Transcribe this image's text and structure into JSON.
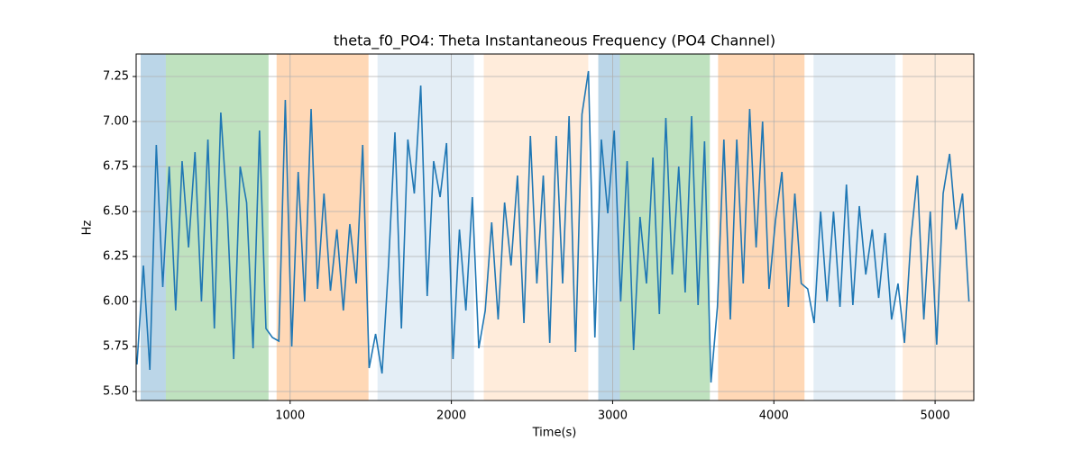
{
  "chart_data": {
    "type": "line",
    "title": "theta_f0_PO4: Theta Instantaneous Frequency (PO4 Channel)",
    "xlabel": "Time(s)",
    "ylabel": "Hz",
    "color": "#1f77b4",
    "grid": true,
    "xlim": [
      45,
      5240
    ],
    "ylim": [
      5.45,
      7.375
    ],
    "xticks": [
      1000,
      2000,
      3000,
      4000,
      5000
    ],
    "yticks": [
      {
        "value": 5.5,
        "label": "5.50"
      },
      {
        "value": 5.75,
        "label": "5.75"
      },
      {
        "value": 6.0,
        "label": "6.00"
      },
      {
        "value": 6.25,
        "label": "6.25"
      },
      {
        "value": 6.5,
        "label": "6.50"
      },
      {
        "value": 6.75,
        "label": "6.75"
      },
      {
        "value": 7.0,
        "label": "7.00"
      },
      {
        "value": 7.25,
        "label": "7.25"
      }
    ],
    "shaded_regions": [
      {
        "start": 73,
        "end": 229,
        "color": "#1f77b4",
        "opacity": 0.3
      },
      {
        "start": 229,
        "end": 866,
        "color": "#2ca02c",
        "opacity": 0.3
      },
      {
        "start": 916,
        "end": 1486,
        "color": "#ff7f0e",
        "opacity": 0.3
      },
      {
        "start": 1542,
        "end": 2140,
        "color": "#1f77b4",
        "opacity": 0.12
      },
      {
        "start": 2201,
        "end": 2849,
        "color": "#ff7f0e",
        "opacity": 0.15
      },
      {
        "start": 2911,
        "end": 3045,
        "color": "#1f77b4",
        "opacity": 0.3
      },
      {
        "start": 3045,
        "end": 3603,
        "color": "#2ca02c",
        "opacity": 0.3
      },
      {
        "start": 3654,
        "end": 4190,
        "color": "#ff7f0e",
        "opacity": 0.3
      },
      {
        "start": 4246,
        "end": 4754,
        "color": "#1f77b4",
        "opacity": 0.12
      },
      {
        "start": 4799,
        "end": 5240,
        "color": "#ff7f0e",
        "opacity": 0.15
      }
    ],
    "x": [
      50,
      90,
      130,
      170,
      210,
      250,
      290,
      330,
      370,
      410,
      450,
      490,
      530,
      570,
      610,
      650,
      690,
      730,
      770,
      810,
      850,
      890,
      930,
      970,
      1010,
      1050,
      1090,
      1130,
      1170,
      1210,
      1250,
      1290,
      1330,
      1370,
      1410,
      1450,
      1490,
      1530,
      1570,
      1610,
      1650,
      1690,
      1730,
      1770,
      1810,
      1850,
      1890,
      1930,
      1970,
      2010,
      2050,
      2090,
      2130,
      2170,
      2210,
      2250,
      2290,
      2330,
      2370,
      2410,
      2450,
      2490,
      2530,
      2570,
      2610,
      2650,
      2690,
      2730,
      2770,
      2810,
      2850,
      2890,
      2930,
      2970,
      3010,
      3050,
      3090,
      3130,
      3170,
      3210,
      3250,
      3290,
      3330,
      3370,
      3410,
      3450,
      3490,
      3530,
      3570,
      3610,
      3650,
      3690,
      3730,
      3770,
      3810,
      3850,
      3890,
      3930,
      3970,
      4010,
      4050,
      4090,
      4130,
      4170,
      4210,
      4250,
      4290,
      4330,
      4370,
      4410,
      4450,
      4490,
      4530,
      4570,
      4610,
      4650,
      4690,
      4730,
      4770,
      4810,
      4850,
      4890,
      4930,
      4970,
      5010,
      5050,
      5090,
      5130,
      5170,
      5210
    ],
    "values": [
      5.65,
      6.2,
      5.62,
      6.87,
      6.08,
      6.75,
      5.95,
      6.78,
      6.3,
      6.83,
      6.0,
      6.9,
      5.85,
      7.05,
      6.5,
      5.68,
      6.75,
      6.55,
      5.74,
      6.95,
      5.85,
      5.8,
      5.78,
      7.12,
      5.75,
      6.72,
      6.0,
      7.07,
      6.07,
      6.6,
      6.06,
      6.4,
      5.95,
      6.43,
      6.1,
      6.87,
      5.63,
      5.82,
      5.6,
      6.2,
      6.94,
      5.85,
      6.9,
      6.6,
      7.2,
      6.03,
      6.78,
      6.58,
      6.88,
      5.68,
      6.4,
      5.95,
      6.58,
      5.74,
      5.95,
      6.44,
      5.9,
      6.55,
      6.2,
      6.7,
      5.88,
      6.92,
      6.1,
      6.7,
      5.77,
      6.92,
      6.1,
      7.03,
      5.72,
      7.04,
      7.28,
      5.8,
      6.9,
      6.49,
      6.95,
      6.0,
      6.78,
      5.73,
      6.47,
      6.1,
      6.8,
      5.93,
      7.02,
      6.15,
      6.75,
      6.05,
      7.03,
      5.98,
      6.89,
      5.55,
      5.97,
      6.9,
      5.9,
      6.9,
      6.1,
      7.07,
      6.3,
      7.0,
      6.07,
      6.45,
      6.72,
      5.97,
      6.6,
      6.1,
      6.07,
      5.88,
      6.5,
      6.0,
      6.5,
      5.97,
      6.65,
      5.98,
      6.53,
      6.15,
      6.4,
      6.02,
      6.38,
      5.9,
      6.1,
      5.77,
      6.35,
      6.7,
      5.9,
      6.5,
      5.76,
      6.6,
      6.82,
      6.4,
      6.6,
      6.0
    ]
  }
}
